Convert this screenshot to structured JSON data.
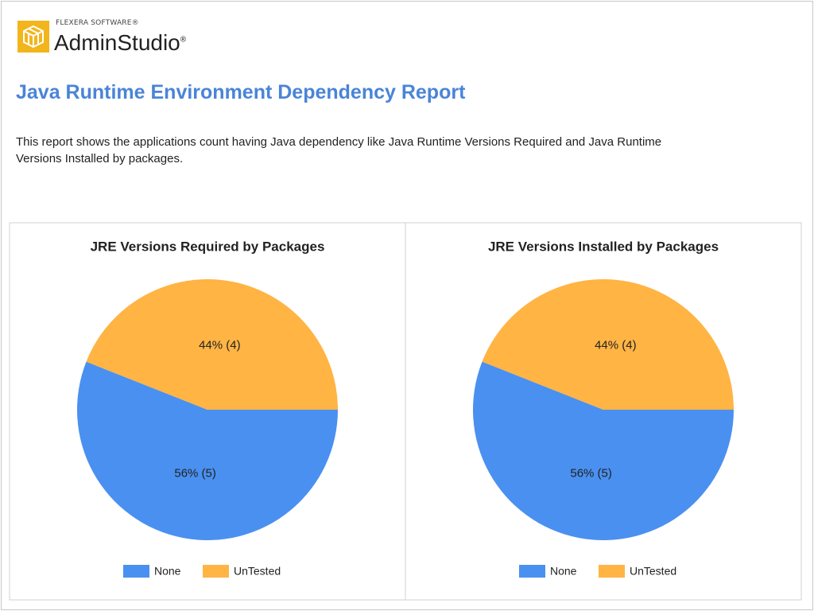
{
  "header": {
    "company": "FLEXERA SOFTWARE®",
    "product": "AdminStudio",
    "trademark": "®"
  },
  "report": {
    "title": "Java Runtime Environment Dependency Report",
    "description": "This report shows the applications count having Java dependency like Java Runtime Versions Required and Java Runtime Versions Installed by packages."
  },
  "chart_data": [
    {
      "type": "pie",
      "title": "JRE Versions Required by Packages",
      "categories": [
        "None",
        "UnTested"
      ],
      "values": [
        56,
        44
      ],
      "value_labels": [
        "56% (5)",
        "44% (4)"
      ],
      "colors": [
        "#4a90f0",
        "#ffb443"
      ]
    },
    {
      "type": "pie",
      "title": "JRE Versions Installed by Packages",
      "categories": [
        "None",
        "UnTested"
      ],
      "values": [
        56,
        44
      ],
      "value_labels": [
        "56% (5)",
        "44% (4)"
      ],
      "colors": [
        "#4a90f0",
        "#ffb443"
      ]
    }
  ]
}
